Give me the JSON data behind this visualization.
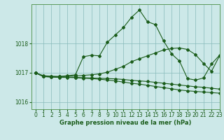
{
  "title": "Graphe pression niveau de la mer (hPa)",
  "background_color": "#cce8e8",
  "grid_color": "#88bbbb",
  "line_color": "#1a5c1a",
  "xlim": [
    -0.5,
    23
  ],
  "ylim": [
    1015.75,
    1019.35
  ],
  "yticks": [
    1016,
    1017,
    1018
  ],
  "xticks": [
    0,
    1,
    2,
    3,
    4,
    5,
    6,
    7,
    8,
    9,
    10,
    11,
    12,
    13,
    14,
    15,
    16,
    17,
    18,
    19,
    20,
    21,
    22,
    23
  ],
  "series": [
    [
      1017.0,
      1016.9,
      1016.88,
      1016.87,
      1016.9,
      1016.93,
      1017.55,
      1017.6,
      1017.58,
      1018.05,
      1018.3,
      1018.55,
      1018.9,
      1019.15,
      1018.75,
      1018.65,
      1018.1,
      1017.65,
      1017.4,
      1016.8,
      1016.75,
      1016.82,
      1017.3,
      1017.6
    ],
    [
      1017.0,
      1016.88,
      1016.87,
      1016.87,
      1016.88,
      1016.89,
      1016.91,
      1016.93,
      1016.96,
      1017.02,
      1017.12,
      1017.22,
      1017.38,
      1017.48,
      1017.58,
      1017.68,
      1017.78,
      1017.83,
      1017.85,
      1017.8,
      1017.62,
      1017.32,
      1017.05,
      1017.58
    ],
    [
      1017.0,
      1016.87,
      1016.86,
      1016.85,
      1016.85,
      1016.84,
      1016.83,
      1016.82,
      1016.81,
      1016.8,
      1016.79,
      1016.77,
      1016.74,
      1016.72,
      1016.7,
      1016.67,
      1016.64,
      1016.61,
      1016.58,
      1016.55,
      1016.52,
      1016.5,
      1016.47,
      1016.44
    ],
    [
      1017.0,
      1016.87,
      1016.85,
      1016.84,
      1016.84,
      1016.83,
      1016.81,
      1016.8,
      1016.78,
      1016.75,
      1016.72,
      1016.68,
      1016.64,
      1016.61,
      1016.57,
      1016.53,
      1016.49,
      1016.45,
      1016.41,
      1016.38,
      1016.36,
      1016.34,
      1016.32,
      1016.3
    ]
  ],
  "marker": "D",
  "markersize": 2.0,
  "linewidth": 0.8,
  "tick_fontsize": 5.5,
  "label_fontsize": 6.0
}
